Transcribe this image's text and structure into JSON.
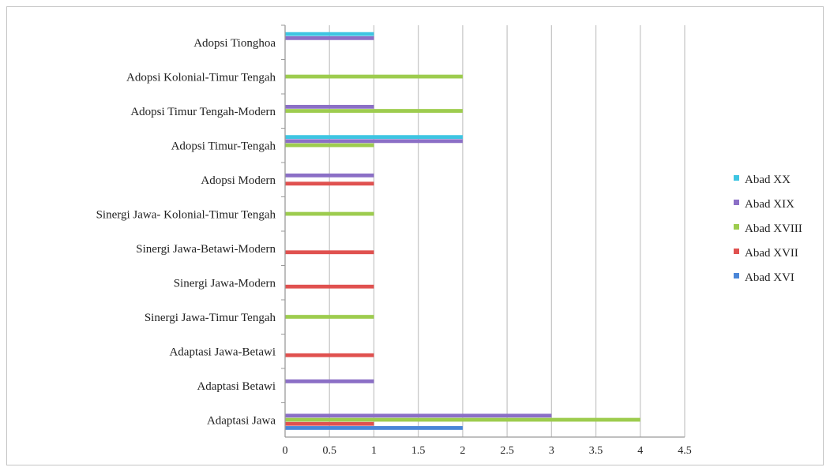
{
  "chart_data": {
    "type": "bar",
    "orientation": "horizontal",
    "categories": [
      "Adaptasi Jawa",
      "Adaptasi  Betawi",
      "Adaptasi  Jawa-Betawi",
      "Sinergi Jawa-Timur Tengah",
      "Sinergi Jawa-Modern",
      "Sinergi  Jawa-Betawi-Modern",
      "Sinergi  Jawa- Kolonial-Timur Tengah",
      "Adopsi Modern",
      "Adopsi Timur-Tengah",
      "Adopsi Timur Tengah-Modern",
      "Adopsi Kolonial-Timur Tengah",
      "Adopsi Tionghoa"
    ],
    "series": [
      {
        "name": "Abad XVI",
        "color": "#4a86d8",
        "values": [
          2,
          0,
          0,
          0,
          0,
          0,
          0,
          0,
          0,
          0,
          0,
          0
        ]
      },
      {
        "name": "Abad XVII",
        "color": "#e0514f",
        "values": [
          1,
          0,
          1,
          0,
          1,
          1,
          0,
          1,
          0,
          0,
          0,
          0
        ]
      },
      {
        "name": "Abad XVIII",
        "color": "#9dcc4e",
        "values": [
          4,
          0,
          0,
          1,
          0,
          0,
          1,
          0,
          1,
          2,
          2,
          0
        ]
      },
      {
        "name": "Abad XIX",
        "color": "#8b6fc6",
        "values": [
          3,
          1,
          0,
          0,
          0,
          0,
          0,
          1,
          2,
          1,
          0,
          1
        ]
      },
      {
        "name": "Abad XX",
        "color": "#3ec5e2",
        "values": [
          0,
          0,
          0,
          0,
          0,
          0,
          0,
          0,
          2,
          0,
          0,
          1
        ]
      }
    ],
    "xlim": [
      0,
      4.5
    ],
    "xticks": [
      "0",
      "0.5",
      "1",
      "1.5",
      "2",
      "2.5",
      "3",
      "3.5",
      "4",
      "4.5"
    ],
    "grid": true,
    "legend_position": "right",
    "title": "",
    "xlabel": "",
    "ylabel": ""
  }
}
